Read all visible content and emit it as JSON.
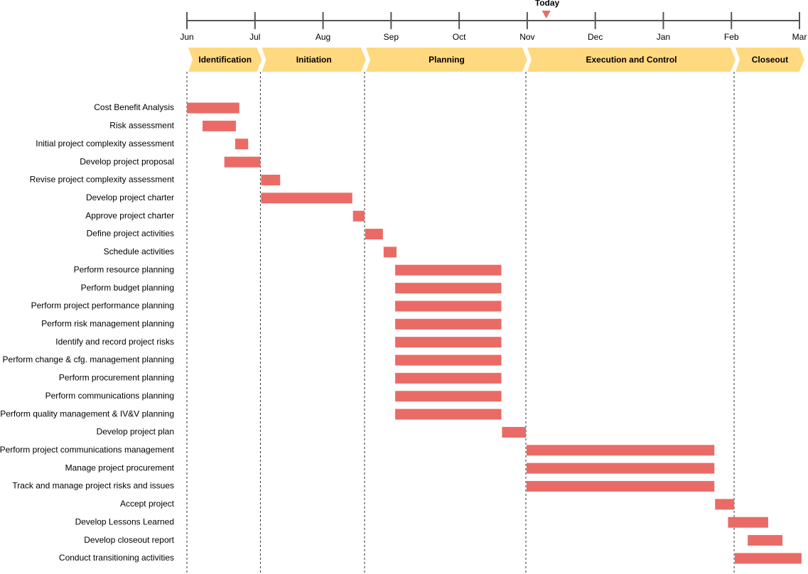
{
  "chart_data": {
    "type": "gantt",
    "color": "#ea6b66",
    "phase_color": "#ffd97f",
    "xlim": [
      0,
      9
    ],
    "xticks": [
      {
        "value": 0,
        "label": "Jun"
      },
      {
        "value": 1,
        "label": "Jul"
      },
      {
        "value": 2,
        "label": "Aug"
      },
      {
        "value": 3,
        "label": "Sep"
      },
      {
        "value": 4,
        "label": "Oct"
      },
      {
        "value": 5,
        "label": "Nov"
      },
      {
        "value": 6,
        "label": "Dec"
      },
      {
        "value": 7,
        "label": "Jan"
      },
      {
        "value": 8,
        "label": "Feb"
      },
      {
        "value": 9,
        "label": "Mar"
      }
    ],
    "today": {
      "label": "Today",
      "value": 5.28
    },
    "phases": [
      {
        "name": "Identification",
        "start": 0,
        "end": 1.08
      },
      {
        "name": "Initiation",
        "start": 1.08,
        "end": 2.61
      },
      {
        "name": "Planning",
        "start": 2.61,
        "end": 4.98
      },
      {
        "name": "Execution and Control",
        "start": 4.98,
        "end": 8.04
      },
      {
        "name": "Closeout",
        "start": 8.04,
        "end": 9.05
      }
    ],
    "tasks": [
      {
        "name": "Cost Benefit Analysis",
        "start": 0,
        "end": 0.77
      },
      {
        "name": "Risk assessment",
        "start": 0.23,
        "end": 0.72
      },
      {
        "name": "Initial project complexity assessment",
        "start": 0.71,
        "end": 0.9
      },
      {
        "name": "Develop project proposal",
        "start": 0.55,
        "end": 1.08
      },
      {
        "name": "Revise project complexity assessment",
        "start": 1.09,
        "end": 1.37
      },
      {
        "name": "Develop project charter",
        "start": 1.09,
        "end": 2.43
      },
      {
        "name": "Approve project charter",
        "start": 2.44,
        "end": 2.61
      },
      {
        "name": "Define project activities",
        "start": 2.62,
        "end": 2.88
      },
      {
        "name": "Schedule activities",
        "start": 2.89,
        "end": 3.08
      },
      {
        "name": "Perform resource planning",
        "start": 3.06,
        "end": 4.62
      },
      {
        "name": "Perform budget planning",
        "start": 3.06,
        "end": 4.62
      },
      {
        "name": "Perform project performance planning",
        "start": 3.06,
        "end": 4.62
      },
      {
        "name": "Perform risk management planning",
        "start": 3.06,
        "end": 4.62
      },
      {
        "name": "Identify and record project risks",
        "start": 3.06,
        "end": 4.62
      },
      {
        "name": "Perform change & cfg. management planning",
        "start": 3.06,
        "end": 4.62
      },
      {
        "name": "Perform procurement planning",
        "start": 3.06,
        "end": 4.62
      },
      {
        "name": "Perform communications planning",
        "start": 3.06,
        "end": 4.62
      },
      {
        "name": "Perform quality management & IV&V planning",
        "start": 3.06,
        "end": 4.62
      },
      {
        "name": "Develop project plan",
        "start": 4.63,
        "end": 4.98
      },
      {
        "name": "Perform project communications management",
        "start": 4.99,
        "end": 7.75
      },
      {
        "name": "Manage project procurement",
        "start": 4.99,
        "end": 7.75
      },
      {
        "name": "Track and manage project risks and issues",
        "start": 4.99,
        "end": 7.75
      },
      {
        "name": "Accept project",
        "start": 7.76,
        "end": 8.04
      },
      {
        "name": "Develop Lessons Learned",
        "start": 7.95,
        "end": 8.54
      },
      {
        "name": "Develop closeout report",
        "start": 8.24,
        "end": 8.75
      },
      {
        "name": "Conduct transitioning activities",
        "start": 8.05,
        "end": 9.03
      }
    ]
  }
}
